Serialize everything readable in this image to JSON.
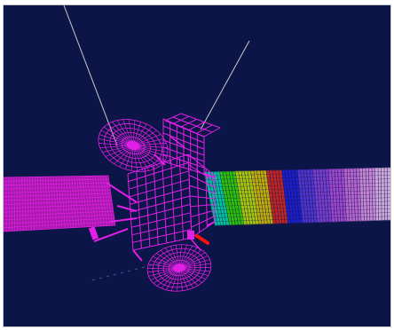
{
  "scene": {
    "background": "#0c1547",
    "wireframe_color": "#e21fe6",
    "antenna_line_color": "#c9c9c9",
    "gradient_colors": [
      "#00e0b0",
      "#36e000",
      "#c4e600",
      "#e0c800",
      "#e02a20",
      "#2020e0",
      "#5b3ae6",
      "#8b45e6",
      "#b750e6",
      "#d873e8",
      "#e99bef",
      "#f2c2f6"
    ],
    "selected_part_color": "#ff1010"
  }
}
